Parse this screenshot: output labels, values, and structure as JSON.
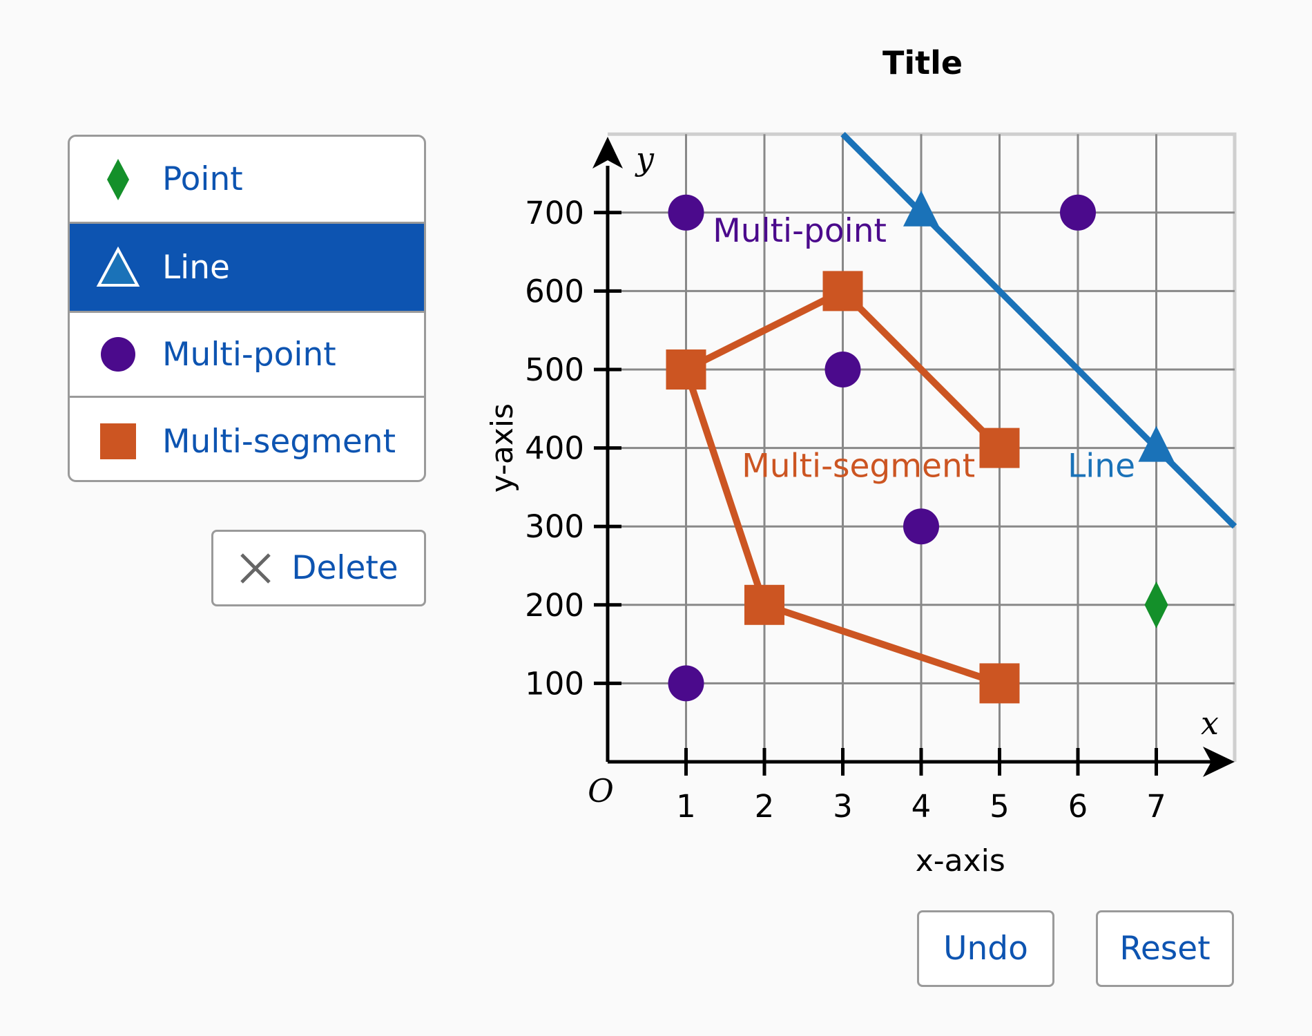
{
  "toolbar": {
    "items": [
      {
        "label": "Point",
        "icon": "diamond-icon",
        "color": "#14902a"
      },
      {
        "label": "Line",
        "icon": "triangle-icon",
        "color": "#1a72b8"
      },
      {
        "label": "Multi-point",
        "icon": "circle-icon",
        "color": "#4b0a8c"
      },
      {
        "label": "Multi-segment",
        "icon": "square-icon",
        "color": "#cc5522"
      }
    ],
    "active": "Line"
  },
  "buttons": {
    "delete": "Delete",
    "undo": "Undo",
    "reset": "Reset"
  },
  "chart_data": {
    "type": "scatter",
    "title": "Title",
    "xlabel": "x-axis",
    "ylabel": "y-axis",
    "x_axis_name": "x",
    "y_axis_name": "y",
    "origin_label": "O",
    "xlim": [
      0,
      8
    ],
    "ylim": [
      0,
      800
    ],
    "x_ticks": [
      1,
      2,
      3,
      4,
      5,
      6,
      7
    ],
    "y_ticks": [
      100,
      200,
      300,
      400,
      500,
      600,
      700
    ],
    "grid": true,
    "colors": {
      "point": "#14902a",
      "line": "#1a72b8",
      "multipoint": "#4b0a8c",
      "multisegment": "#cc5522"
    },
    "point": {
      "x": 7,
      "y": 200
    },
    "line": {
      "label": "Line",
      "through": [
        {
          "x": 4,
          "y": 700
        },
        {
          "x": 7,
          "y": 400
        }
      ]
    },
    "multipoint": {
      "label": "Multi-point",
      "points": [
        {
          "x": 1,
          "y": 700
        },
        {
          "x": 6,
          "y": 700
        },
        {
          "x": 3,
          "y": 500
        },
        {
          "x": 4,
          "y": 300
        },
        {
          "x": 1,
          "y": 100
        }
      ]
    },
    "multisegment": {
      "label": "Multi-segment",
      "points": [
        {
          "x": 5,
          "y": 400
        },
        {
          "x": 3,
          "y": 600
        },
        {
          "x": 1,
          "y": 500
        },
        {
          "x": 2,
          "y": 200
        },
        {
          "x": 5,
          "y": 100
        }
      ]
    }
  }
}
